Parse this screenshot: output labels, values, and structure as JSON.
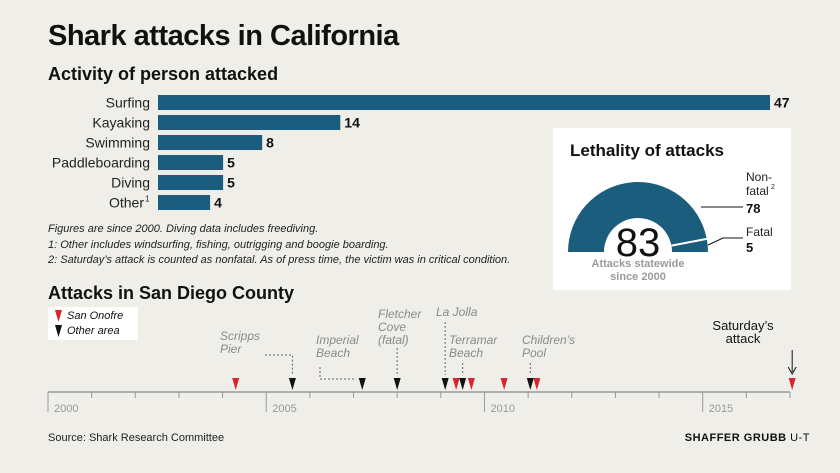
{
  "title": "Shark attacks in California",
  "colors": {
    "bar": "#1b5d7c",
    "san_onofre": "#d7262f",
    "other_area": "#111111",
    "axis": "#999999",
    "box": "#ffffff"
  },
  "footer": {
    "source": "Source: Shark Research Committee",
    "credit_bold": "SHAFFER GRUBB",
    "credit_light": "U-T"
  },
  "chart_data": [
    {
      "type": "bar",
      "title": "Activity of person attacked",
      "orientation": "horizontal",
      "categories": [
        "Surfing",
        "Kayaking",
        "Swimming",
        "Paddleboarding",
        "Diving",
        "Other"
      ],
      "category_superscripts": [
        "",
        "",
        "",
        "",
        "",
        "1"
      ],
      "values": [
        47,
        14,
        8,
        5,
        5,
        4
      ],
      "notes": [
        "Figures are since 2000. Diving data includes freediving.",
        "1: Other includes windsurfing, fishing, outrigging and boogie boarding.",
        "2: Saturday’s attack is counted as nonfatal. As of press time, the victim was in critical condition."
      ]
    },
    {
      "type": "pie",
      "style": "half-donut gauge",
      "title": "Lethality of attacks",
      "total": 83,
      "total_label_line1": "Attacks statewide",
      "total_label_line2": "since 2000",
      "slices": [
        {
          "label_line1": "Non-",
          "label_line2": "fatal",
          "superscript": "2",
          "value": 78
        },
        {
          "label": "Fatal",
          "value": 5
        }
      ]
    },
    {
      "type": "scatter",
      "style": "timeline",
      "title": "Attacks in San Diego County",
      "x_range": [
        2000,
        2017
      ],
      "x_ticks": [
        2000,
        2005,
        2010,
        2015
      ],
      "legend": [
        {
          "label": "San Onofre",
          "color": "#d7262f"
        },
        {
          "label": "Other area",
          "color": "#111111"
        }
      ],
      "events": [
        {
          "year": 2004.3,
          "area": "San Onofre"
        },
        {
          "year": 2005.6,
          "area": "Other area"
        },
        {
          "year": 2007.2,
          "area": "Other area"
        },
        {
          "year": 2008.0,
          "area": "Other area"
        },
        {
          "year": 2009.1,
          "area": "Other area"
        },
        {
          "year": 2009.35,
          "area": "San Onofre"
        },
        {
          "year": 2009.5,
          "area": "Other area"
        },
        {
          "year": 2009.7,
          "area": "San Onofre"
        },
        {
          "year": 2010.45,
          "area": "San Onofre"
        },
        {
          "year": 2011.05,
          "area": "Other area"
        },
        {
          "year": 2011.2,
          "area": "San Onofre"
        },
        {
          "year": 2017.05,
          "area": "San Onofre"
        }
      ],
      "annotations": [
        {
          "lines": [
            "Scripps",
            "Pier"
          ],
          "year": 2005.6
        },
        {
          "lines": [
            "Imperial",
            "Beach"
          ],
          "year": 2007.2
        },
        {
          "lines": [
            "Fletcher",
            "Cove",
            "(fatal)"
          ],
          "year": 2008.0
        },
        {
          "lines": [
            "La Jolla"
          ],
          "year": 2009.1
        },
        {
          "lines": [
            "Terramar",
            "Beach"
          ],
          "year": 2009.5
        },
        {
          "lines": [
            "Children’s",
            "Pool"
          ],
          "year": 2011.05
        },
        {
          "lines": [
            "Saturday’s",
            "attack"
          ],
          "year": 2017.05
        }
      ]
    }
  ]
}
